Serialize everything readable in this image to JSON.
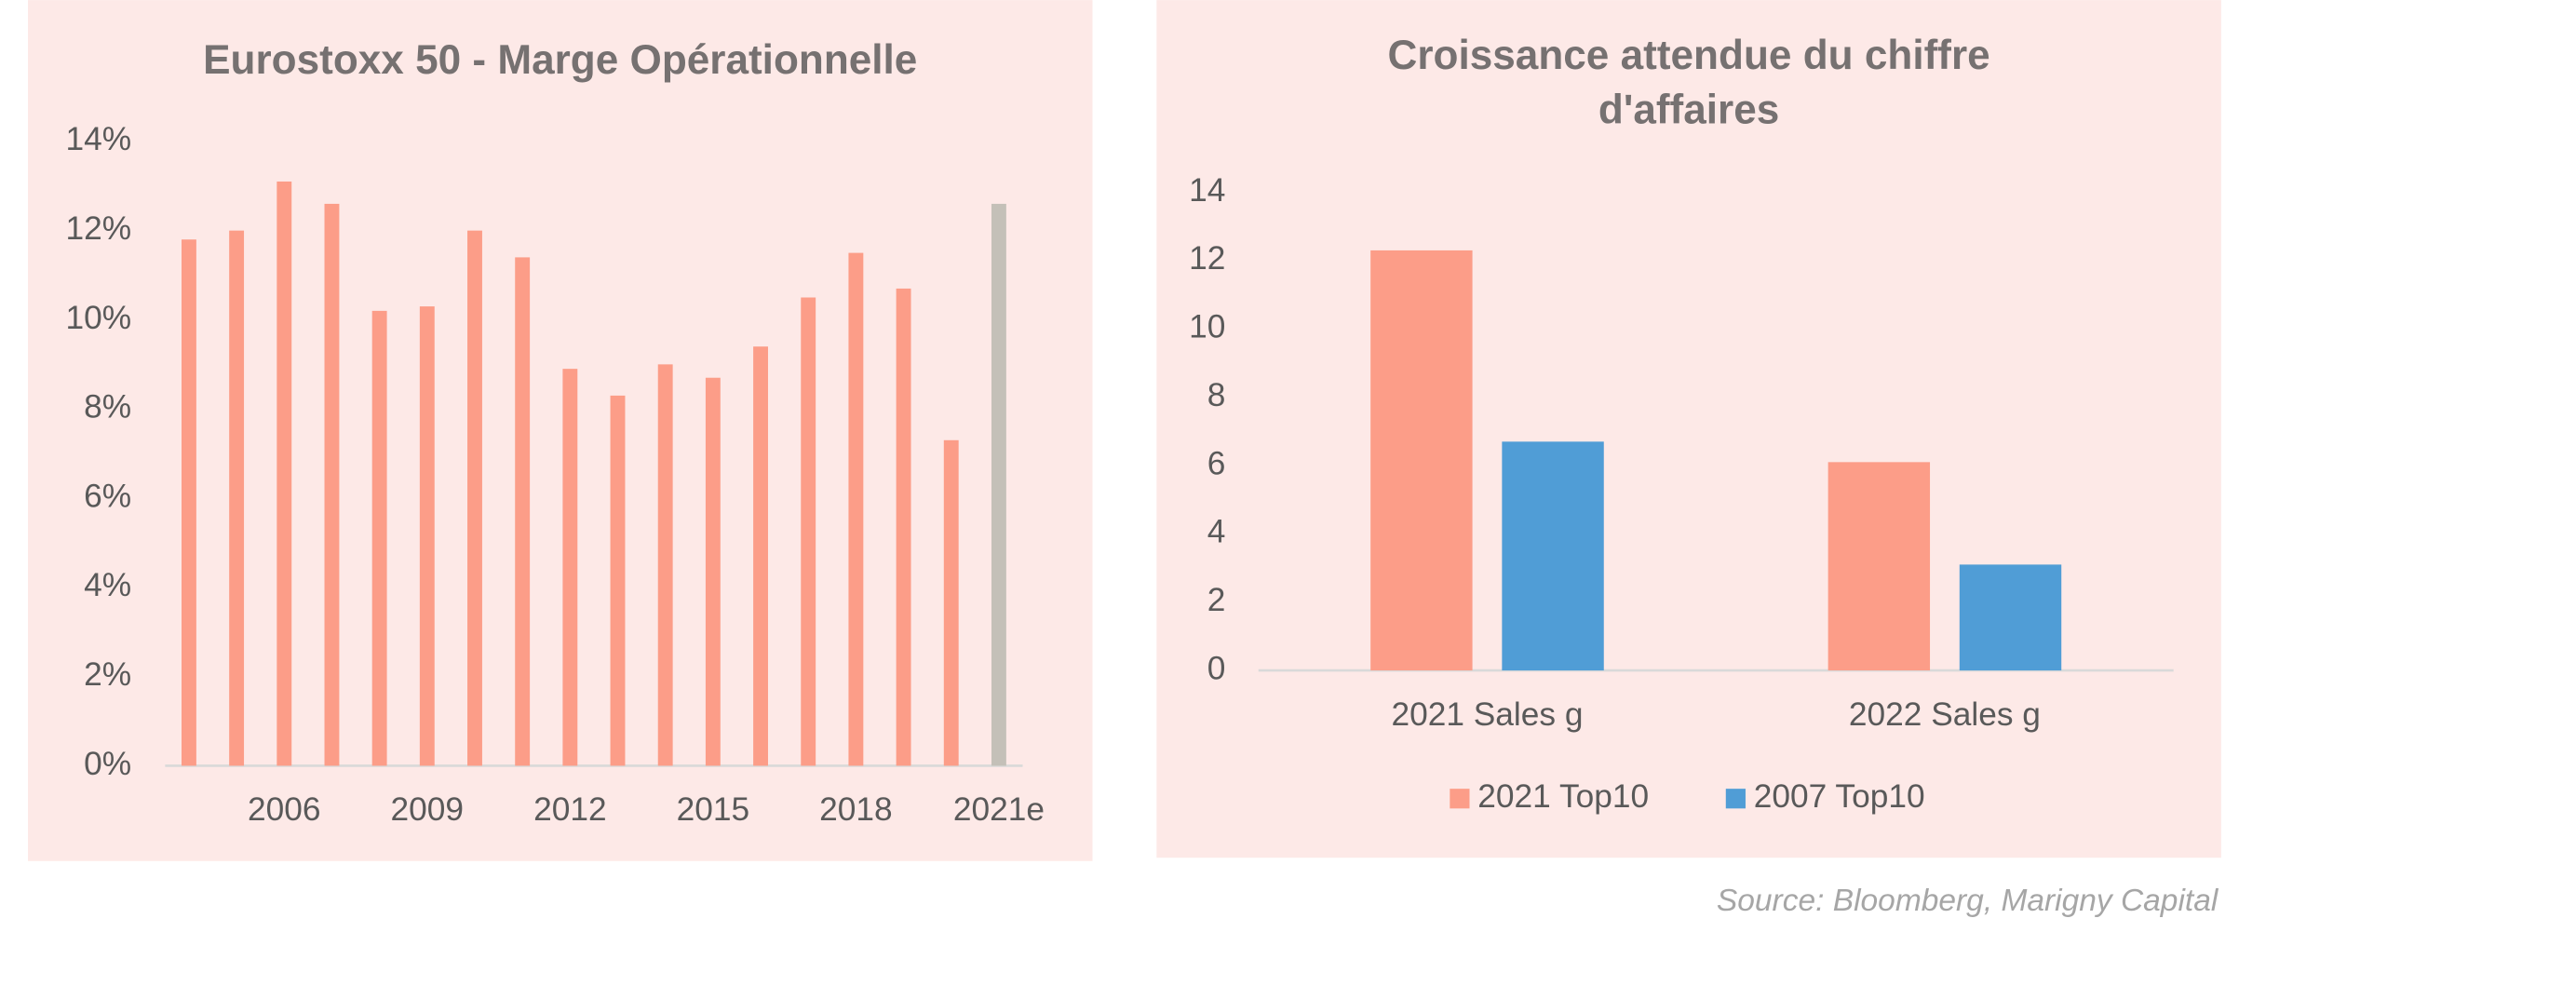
{
  "chart_data": [
    {
      "type": "bar",
      "title": "Eurostoxx 50 - Marge Opérationnelle",
      "categories": [
        null,
        null,
        "2006",
        null,
        null,
        "2009",
        null,
        null,
        "2012",
        null,
        null,
        "2015",
        null,
        null,
        "2018",
        null,
        null,
        "2021e"
      ],
      "values": [
        11.8,
        12.0,
        13.1,
        12.6,
        10.2,
        10.3,
        12.0,
        11.4,
        8.9,
        8.3,
        9.0,
        8.7,
        9.4,
        10.5,
        11.5,
        10.7,
        7.3,
        12.6
      ],
      "colors": [
        "#fc9d88",
        "#fc9d88",
        "#fc9d88",
        "#fc9d88",
        "#fc9d88",
        "#fc9d88",
        "#fc9d88",
        "#fc9d88",
        "#fc9d88",
        "#fc9d88",
        "#fc9d88",
        "#fc9d88",
        "#fc9d88",
        "#fc9d88",
        "#fc9d88",
        "#fc9d88",
        "#fc9d88",
        "#c4c0b8"
      ],
      "ylim": [
        0,
        14
      ],
      "yticks": [
        {
          "value": 0,
          "label": "0%"
        },
        {
          "value": 2,
          "label": "2%"
        },
        {
          "value": 4,
          "label": "4%"
        },
        {
          "value": 6,
          "label": "6%"
        },
        {
          "value": 8,
          "label": "8%"
        },
        {
          "value": 10,
          "label": "10%"
        },
        {
          "value": 12,
          "label": "12%"
        },
        {
          "value": 14,
          "label": "14%"
        }
      ],
      "grid": false
    },
    {
      "type": "bar",
      "title": "Croissance attendue du chiffre d'affaires",
      "categories": [
        "2021 Sales g",
        "2022 Sales g"
      ],
      "series": [
        {
          "name": "2021 Top10",
          "color": "#fc9d88",
          "values": [
            12.3,
            6.1
          ]
        },
        {
          "name": "2007 Top10",
          "color": "#509dd6",
          "values": [
            6.7,
            3.1
          ]
        }
      ],
      "ylim": [
        0,
        14
      ],
      "yticks": [
        0,
        2,
        4,
        6,
        8,
        10,
        12,
        14
      ],
      "grid": false,
      "legend": "bottom"
    }
  ],
  "source": "Source: Bloomberg, Marigny Capital"
}
